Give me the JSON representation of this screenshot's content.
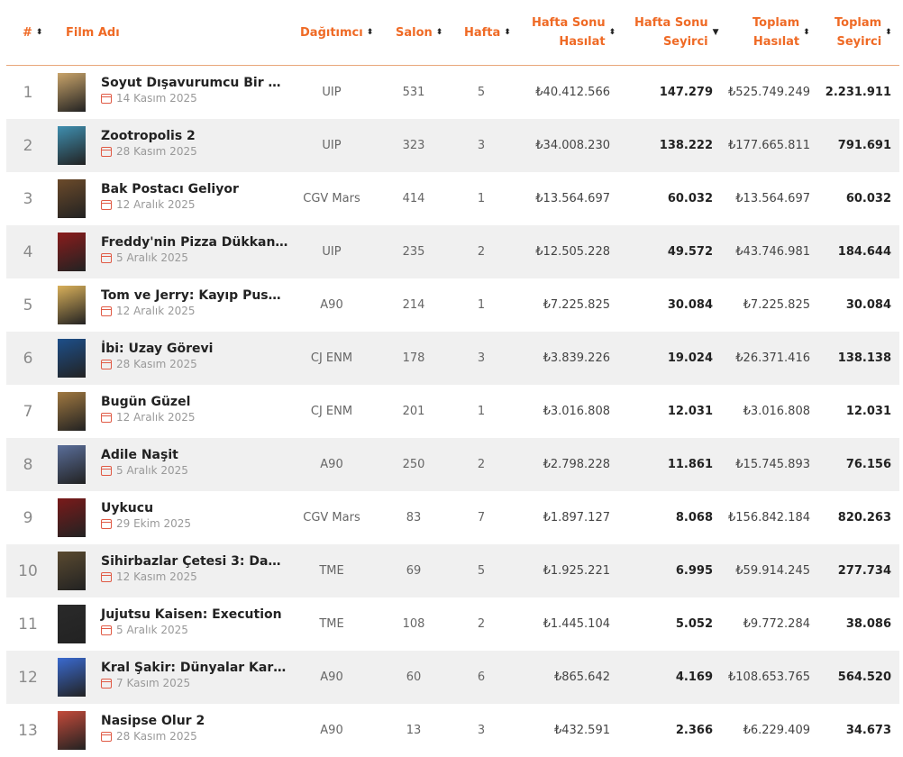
{
  "header": {
    "rank": "#",
    "film": "Film Adı",
    "distributor": "Dağıtımcı",
    "salon": "Salon",
    "hafta": "Hafta",
    "weekend_gross_1": "Hafta Sonu",
    "weekend_gross_2": "Hasılat",
    "weekend_adm_1": "Hafta Sonu",
    "weekend_adm_2": "Seyirci",
    "total_gross_1": "Toplam",
    "total_gross_2": "Hasılat",
    "total_adm_1": "Toplam",
    "total_adm_2": "Seyirci",
    "sort_icon": "⬍",
    "sort_desc_icon": "▼"
  },
  "colors": {
    "accent": "#ef6a25",
    "calendar": "#e05a45",
    "row_alt": "#f0f0f0"
  },
  "rows": [
    {
      "rank": "1",
      "title": "Soyut Dışavurumcu Bir …",
      "date": "14 Kasım 2025",
      "distributor": "UIP",
      "salon": "531",
      "hafta": "5",
      "weekend_gross": "₺40.412.566",
      "weekend_adm": "147.279",
      "total_gross": "₺525.749.249",
      "total_adm": "2.231.911",
      "poster": "#c9a46a"
    },
    {
      "rank": "2",
      "title": "Zootropolis 2",
      "date": "28 Kasım 2025",
      "distributor": "UIP",
      "salon": "323",
      "hafta": "3",
      "weekend_gross": "₺34.008.230",
      "weekend_adm": "138.222",
      "total_gross": "₺177.665.811",
      "total_adm": "791.691",
      "poster": "#3f8fb0"
    },
    {
      "rank": "3",
      "title": "Bak Postacı Geliyor",
      "date": "12 Aralık 2025",
      "distributor": "CGV Mars",
      "salon": "414",
      "hafta": "1",
      "weekend_gross": "₺13.564.697",
      "weekend_adm": "60.032",
      "total_gross": "₺13.564.697",
      "total_adm": "60.032",
      "poster": "#6b4a2a"
    },
    {
      "rank": "4",
      "title": "Freddy'nin Pizza Dükkan…",
      "date": "5 Aralık 2025",
      "distributor": "UIP",
      "salon": "235",
      "hafta": "2",
      "weekend_gross": "₺12.505.228",
      "weekend_adm": "49.572",
      "total_gross": "₺43.746.981",
      "total_adm": "184.644",
      "poster": "#8a1c1c"
    },
    {
      "rank": "5",
      "title": "Tom ve Jerry: Kayıp Pus…",
      "date": "12 Aralık 2025",
      "distributor": "A90",
      "salon": "214",
      "hafta": "1",
      "weekend_gross": "₺7.225.825",
      "weekend_adm": "30.084",
      "total_gross": "₺7.225.825",
      "total_adm": "30.084",
      "poster": "#d9b05a"
    },
    {
      "rank": "6",
      "title": "İbi: Uzay Görevi",
      "date": "28 Kasım 2025",
      "distributor": "CJ ENM",
      "salon": "178",
      "hafta": "3",
      "weekend_gross": "₺3.839.226",
      "weekend_adm": "19.024",
      "total_gross": "₺26.371.416",
      "total_adm": "138.138",
      "poster": "#1d4f8a"
    },
    {
      "rank": "7",
      "title": "Bugün Güzel",
      "date": "12 Aralık 2025",
      "distributor": "CJ ENM",
      "salon": "201",
      "hafta": "1",
      "weekend_gross": "₺3.016.808",
      "weekend_adm": "12.031",
      "total_gross": "₺3.016.808",
      "total_adm": "12.031",
      "poster": "#a07840"
    },
    {
      "rank": "8",
      "title": "Adile Naşit",
      "date": "5 Aralık 2025",
      "distributor": "A90",
      "salon": "250",
      "hafta": "2",
      "weekend_gross": "₺2.798.228",
      "weekend_adm": "11.861",
      "total_gross": "₺15.745.893",
      "total_adm": "76.156",
      "poster": "#5a6e9a"
    },
    {
      "rank": "9",
      "title": "Uykucu",
      "date": "29 Ekim 2025",
      "distributor": "CGV Mars",
      "salon": "83",
      "hafta": "7",
      "weekend_gross": "₺1.897.127",
      "weekend_adm": "8.068",
      "total_gross": "₺156.842.184",
      "total_adm": "820.263",
      "poster": "#7a1a1a"
    },
    {
      "rank": "10",
      "title": "Sihirbazlar Çetesi 3: Da…",
      "date": "12 Kasım 2025",
      "distributor": "TME",
      "salon": "69",
      "hafta": "5",
      "weekend_gross": "₺1.925.221",
      "weekend_adm": "6.995",
      "total_gross": "₺59.914.245",
      "total_adm": "277.734",
      "poster": "#5a4a30"
    },
    {
      "rank": "11",
      "title": "Jujutsu Kaisen: Execution",
      "date": "5 Aralık 2025",
      "distributor": "TME",
      "salon": "108",
      "hafta": "2",
      "weekend_gross": "₺1.445.104",
      "weekend_adm": "5.052",
      "total_gross": "₺9.772.284",
      "total_adm": "38.086",
      "poster": "#2a2a2a"
    },
    {
      "rank": "12",
      "title": "Kral Şakir: Dünyalar Kar…",
      "date": "7 Kasım 2025",
      "distributor": "A90",
      "salon": "60",
      "hafta": "6",
      "weekend_gross": "₺865.642",
      "weekend_adm": "4.169",
      "total_gross": "₺108.653.765",
      "total_adm": "564.520",
      "poster": "#3a6ad0"
    },
    {
      "rank": "13",
      "title": "Nasipse Olur 2",
      "date": "28 Kasım 2025",
      "distributor": "A90",
      "salon": "13",
      "hafta": "3",
      "weekend_gross": "₺432.591",
      "weekend_adm": "2.366",
      "total_gross": "₺6.229.409",
      "total_adm": "34.673",
      "poster": "#c44a3a"
    }
  ]
}
